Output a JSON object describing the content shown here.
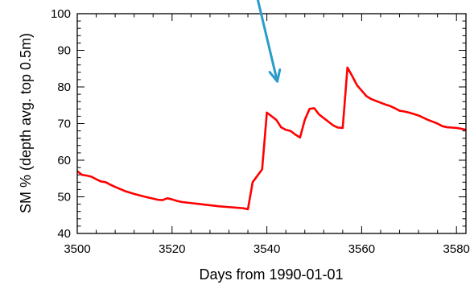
{
  "chart_data": {
    "type": "line",
    "title": "",
    "xlabel": "Days from 1990-01-01",
    "ylabel": "SM % (depth avg. top 0.5m)",
    "xlim": [
      3500,
      3582
    ],
    "ylim": [
      40,
      100
    ],
    "x_ticks": [
      3500,
      3520,
      3540,
      3560,
      3580
    ],
    "y_ticks": [
      40,
      50,
      60,
      70,
      80,
      90,
      100
    ],
    "x_tick_labels": [
      "3500",
      "3520",
      "3540",
      "3560",
      "3580"
    ],
    "y_tick_labels": [
      "40",
      "50",
      "60",
      "70",
      "80",
      "90",
      "100"
    ],
    "grid": false,
    "series": [
      {
        "color": "#ff0000",
        "x": [
          3500,
          3501,
          3502,
          3503,
          3504,
          3505,
          3506,
          3507,
          3508,
          3510,
          3512,
          3514,
          3516,
          3517,
          3518,
          3519,
          3520,
          3521,
          3522,
          3524,
          3526,
          3528,
          3530,
          3532,
          3534,
          3535,
          3536,
          3537,
          3539,
          3540,
          3541,
          3542,
          3543,
          3544,
          3545,
          3546,
          3547,
          3548,
          3549,
          3550,
          3551,
          3552,
          3553,
          3554,
          3555,
          3556,
          3557,
          3558,
          3559,
          3560,
          3561,
          3562,
          3563,
          3564,
          3565,
          3566,
          3567,
          3568,
          3569,
          3570,
          3571,
          3572,
          3573,
          3574,
          3575,
          3576,
          3577,
          3578,
          3579,
          3580,
          3581,
          3582
        ],
        "values": [
          57.0,
          56.0,
          55.8,
          55.5,
          54.8,
          54.2,
          54.0,
          53.3,
          52.7,
          51.6,
          50.8,
          50.1,
          49.5,
          49.2,
          49.1,
          49.6,
          49.3,
          48.9,
          48.6,
          48.3,
          48.0,
          47.7,
          47.4,
          47.2,
          47.0,
          46.9,
          46.6,
          54.0,
          57.5,
          73.0,
          72.0,
          71.0,
          69.0,
          68.3,
          68.0,
          67.0,
          66.2,
          71.0,
          74.0,
          74.2,
          72.5,
          71.5,
          70.5,
          69.5,
          68.9,
          68.8,
          85.3,
          83.0,
          80.5,
          79.0,
          77.5,
          76.7,
          76.2,
          75.7,
          75.2,
          74.8,
          74.2,
          73.5,
          73.3,
          73.0,
          72.6,
          72.2,
          71.6,
          71.0,
          70.5,
          70.0,
          69.3,
          69.0,
          68.9,
          68.8,
          68.6,
          68.3
        ]
      }
    ],
    "annotation": {
      "type": "arrow",
      "color": "#2a9cc9",
      "from": [
        3537.5,
        107
      ],
      "to": [
        3542.2,
        81.5
      ]
    }
  }
}
